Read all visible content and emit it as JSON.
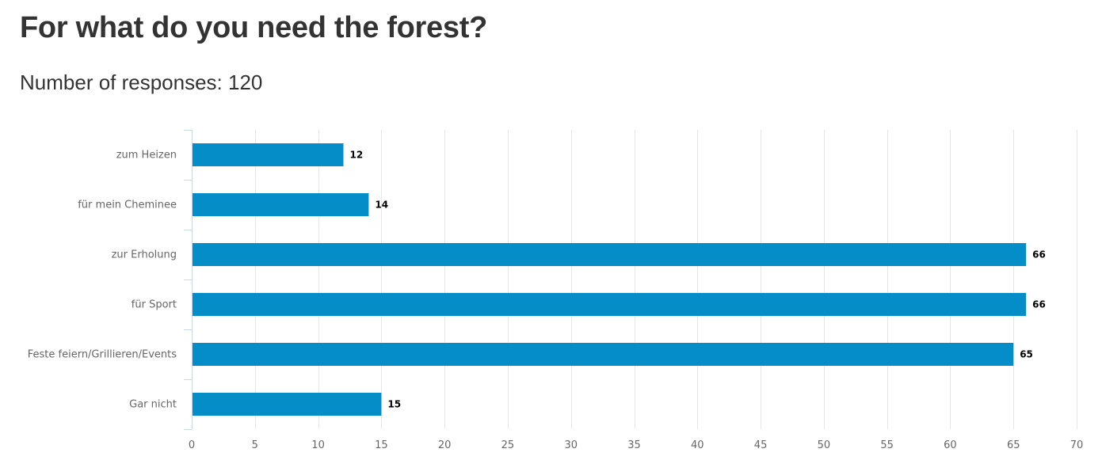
{
  "header": {
    "title": "For what do you need the forest?",
    "subtitle": "Number of responses: 120"
  },
  "chart_data": {
    "type": "bar",
    "orientation": "horizontal",
    "categories": [
      "zum Heizen",
      "für mein Cheminee",
      "zur Erholung",
      "für Sport",
      "Feste feiern/Grillieren/Events",
      "Gar nicht"
    ],
    "values": [
      12,
      14,
      66,
      66,
      65,
      15
    ],
    "xlim": [
      0,
      70
    ],
    "xticks": [
      0,
      5,
      10,
      15,
      20,
      25,
      30,
      35,
      40,
      45,
      50,
      55,
      60,
      65,
      70
    ],
    "grid": true,
    "data_labels": true,
    "bar_color": "#058dc7",
    "grid_color": "#e6e6e6",
    "axis_color": "#ccd6eb"
  }
}
